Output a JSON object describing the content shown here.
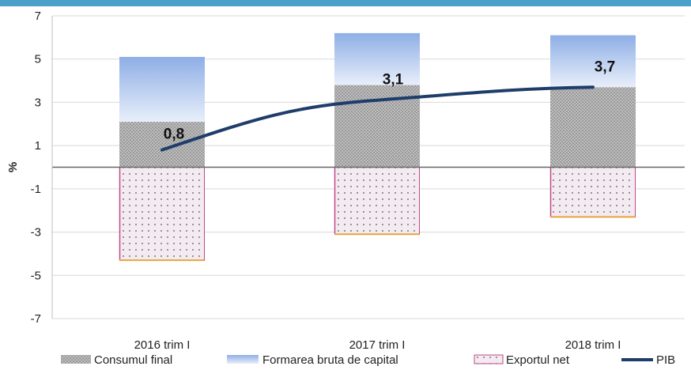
{
  "colors": {
    "header": "#4aa0c8",
    "formare_top": "#8eaee6",
    "formare_bottom": "#e8effa",
    "consum_base": "#bdbdbd",
    "consum_dot": "#6e6e6e",
    "export_fill": "#f4eaf2",
    "export_dot": "#555555",
    "export_border_left": "#c04a86",
    "export_border_bottom": "#e8a53c",
    "line": "#1f3d6b",
    "grid": "#d9d9d9",
    "zero": "#666666"
  },
  "chart_data": {
    "type": "bar",
    "stacked": true,
    "ylabel": "%",
    "ylim": [
      -7,
      7
    ],
    "yticks": [
      -7,
      -5,
      -3,
      -1,
      1,
      3,
      5,
      7
    ],
    "grid": true,
    "legend_position": "bottom",
    "categories": [
      "2016 trim I",
      "2017 trim I",
      "2018 trim I"
    ],
    "series": [
      {
        "name": "Consumul final",
        "kind": "bar",
        "values": [
          2.1,
          3.8,
          3.7
        ]
      },
      {
        "name": "Formarea bruta de capital",
        "kind": "bar",
        "values": [
          3.0,
          2.4,
          2.4
        ]
      },
      {
        "name": "Exportul net",
        "kind": "bar",
        "values": [
          -4.3,
          -3.1,
          -2.3
        ]
      },
      {
        "name": "PIB",
        "kind": "line",
        "values": [
          0.8,
          3.1,
          3.7
        ],
        "labels": [
          "0,8",
          "3,1",
          "3,7"
        ]
      }
    ]
  }
}
